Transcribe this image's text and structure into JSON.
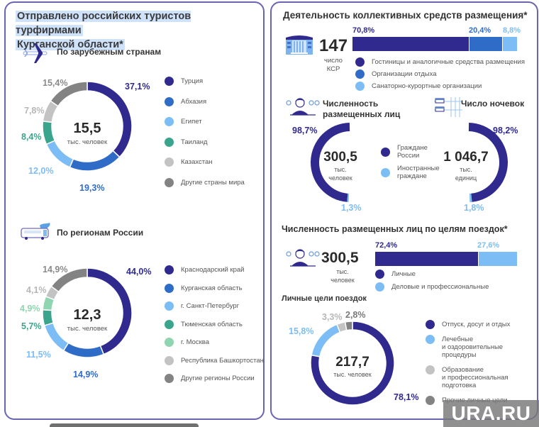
{
  "colors": {
    "navy": "#302a8f",
    "blue": "#2f6cc7",
    "light_blue": "#7dbdf5",
    "teal": "#3aa58c",
    "light_gray": "#c3c3c3",
    "dark_gray": "#838383",
    "light_green": "#8fd5b0",
    "border": "#6a64b4"
  },
  "left": {
    "title_line1": "Отправлено российских туристов турфирмами",
    "title_line2": "Курганской области*",
    "foreign": {
      "heading": "По зарубежным странам",
      "icon": "airplane-icon",
      "center_value": "15,5",
      "center_unit": "тыс. человек"
    },
    "regions": {
      "heading": "По регионам России",
      "icon": "bus-icon",
      "center_value": "12,3",
      "center_unit": "тыс. человек"
    }
  },
  "right": {
    "ksr": {
      "title": "Деятельность коллективных средств размещения*",
      "icon": "building-icon",
      "count": "147",
      "count_label_line1": "число",
      "count_label_line2": "КСР"
    },
    "people": {
      "heading_line1": "Численность",
      "heading_line2": "размещенных лиц",
      "icon": "person-icon",
      "value": "300,5",
      "unit_line1": "тыс.",
      "unit_line2": "человек"
    },
    "nights": {
      "heading": "Число ночевок",
      "icon": "beds-icon",
      "value": "1 046,7",
      "unit_line1": "тыс.",
      "unit_line2": "единиц"
    },
    "citizens_legend": [
      {
        "label_line1": "Граждане",
        "label_line2": "России",
        "color": "#302a8f"
      },
      {
        "label_line1": "Иностранные",
        "label_line2": "граждане",
        "color": "#7dbdf5"
      }
    ],
    "purpose": {
      "title": "Численность размещенных лиц по целям поездок*",
      "icon": "person-icon",
      "value": "300,5",
      "unit_line1": "тыс.",
      "unit_line2": "человек"
    },
    "personal": {
      "title": "Личные цели поездок",
      "center_value": "217,7",
      "center_unit": "тыс. человек"
    }
  },
  "watermark": "URA.RU",
  "chart_data": [
    {
      "type": "pie",
      "title": "По зарубежным странам",
      "categories": [
        "Турция",
        "Абхазия",
        "Египет",
        "Таиланд",
        "Казахстан",
        "Другие страны мира"
      ],
      "legend_labels": [
        "Турция",
        "Абхазия",
        "Египет",
        "Таиланд",
        "Казахстан",
        "Другие страны мира"
      ],
      "values": [
        37.1,
        19.3,
        12.0,
        8.4,
        7.8,
        15.4
      ],
      "labels": [
        "37,1%",
        "19,3%",
        "12,0%",
        "8,4%",
        "7,8%",
        "15,4%"
      ],
      "colors": [
        "#302a8f",
        "#2f6cc7",
        "#7dbdf5",
        "#3aa58c",
        "#c3c3c3",
        "#838383"
      ],
      "legend": "right",
      "total": "15,5 тыс. человек"
    },
    {
      "type": "pie",
      "title": "По регионам России",
      "categories": [
        "Краснодарский край",
        "Курганская область",
        "г. Санкт-Петербург",
        "Тюменская область",
        "г. Москва",
        "Республика Башкортостан",
        "Другие регионы России"
      ],
      "values": [
        44.0,
        14.9,
        11.5,
        5.7,
        4.9,
        4.1,
        14.9
      ],
      "labels": [
        "44,0%",
        "14,9%",
        "11,5%",
        "5,7%",
        "4,9%",
        "4,1%",
        "14,9%"
      ],
      "colors": [
        "#302a8f",
        "#2f6cc7",
        "#7dbdf5",
        "#3aa58c",
        "#8fd5b0",
        "#c3c3c3",
        "#838383"
      ],
      "legend": "right",
      "total": "12,3 тыс. человек"
    },
    {
      "type": "bar",
      "title": "Деятельность коллективных средств размещения",
      "stacked": true,
      "categories": [
        "Гостиницы и аналогичные средства размещения",
        "Организации отдыха",
        "Санаторно-курортные организации"
      ],
      "values": [
        70.8,
        20.4,
        8.8
      ],
      "labels": [
        "70,8%",
        "20,4%",
        "8,8%"
      ],
      "colors": [
        "#302a8f",
        "#2f6cc7",
        "#7dbdf5"
      ],
      "legend": "bottom"
    },
    {
      "type": "pie",
      "title": "Численность размещенных лиц",
      "categories": [
        "Граждане России",
        "Иностранные граждане"
      ],
      "values": [
        98.7,
        1.3
      ],
      "labels": [
        "98,7%",
        "1,3%"
      ],
      "colors": [
        "#302a8f",
        "#7dbdf5"
      ],
      "total": "300,5 тыс. человек"
    },
    {
      "type": "pie",
      "title": "Число ночевок",
      "categories": [
        "Граждане России",
        "Иностранные граждане"
      ],
      "values": [
        98.2,
        1.8
      ],
      "labels": [
        "98,2%",
        "1,8%"
      ],
      "colors": [
        "#302a8f",
        "#7dbdf5"
      ],
      "total": "1 046,7 тыс. единиц"
    },
    {
      "type": "bar",
      "title": "Численность размещенных лиц по целям поездок",
      "stacked": true,
      "categories": [
        "Личные",
        "Деловые и профессиональные"
      ],
      "values": [
        72.4,
        27.6
      ],
      "labels": [
        "72,4%",
        "27,6%"
      ],
      "colors": [
        "#302a8f",
        "#7dbdf5"
      ],
      "legend": "bottom"
    },
    {
      "type": "pie",
      "title": "Личные цели поездок",
      "categories": [
        "Отпуск, досуг и отдых",
        "Лечебные и оздоровительные процедуры",
        "Образование и профессиональная подготовка",
        "Прочие личные цели"
      ],
      "legend_lines": [
        [
          "Отпуск, досуг и отдых"
        ],
        [
          "Лечебные",
          "и оздоровительные",
          "процедуры"
        ],
        [
          "Образование",
          "и профессиональная",
          "подготовка"
        ],
        [
          "Прочие личные цели"
        ]
      ],
      "values": [
        78.1,
        15.8,
        3.3,
        2.8
      ],
      "labels": [
        "78,1%",
        "15,8%",
        "3,3%",
        "2,8%"
      ],
      "colors": [
        "#302a8f",
        "#7dbdf5",
        "#c3c3c3",
        "#838383"
      ],
      "legend": "right",
      "total": "217,7 тыс. человек"
    }
  ]
}
